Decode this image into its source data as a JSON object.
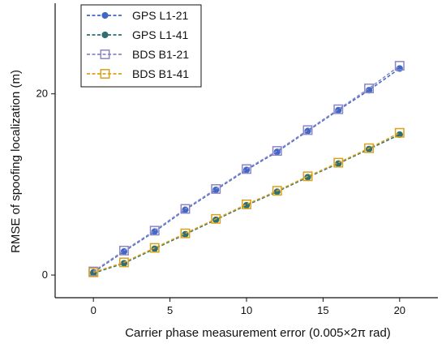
{
  "chart_data": {
    "type": "line",
    "xlabel": "Carrier phase measurement error (0.005×2π rad)",
    "ylabel": "RMSE of spoofing localization (m)",
    "xlim": [
      -2.5,
      22.5
    ],
    "ylim": [
      -2.5,
      30
    ],
    "x_ticks": [
      0,
      5,
      10,
      15,
      20
    ],
    "y_ticks": [
      0,
      20
    ],
    "x": [
      0,
      2,
      4,
      6,
      8,
      10,
      12,
      14,
      16,
      18,
      20
    ],
    "legend_position": "top-left",
    "grid": false,
    "series": [
      {
        "name": "GPS L1-21",
        "color": "#3f68c6",
        "marker": "circle",
        "values": [
          0.3,
          2.6,
          4.8,
          7.2,
          9.4,
          11.6,
          13.6,
          15.9,
          18.2,
          20.4,
          22.8
        ]
      },
      {
        "name": "GPS L1-41",
        "color": "#2f6f70",
        "marker": "circle",
        "values": [
          0.2,
          1.3,
          2.9,
          4.5,
          6.1,
          7.7,
          9.2,
          10.8,
          12.3,
          13.9,
          15.5
        ]
      },
      {
        "name": "BDS B1-21",
        "color": "#8a86c9",
        "marker": "square-open",
        "values": [
          0.4,
          2.7,
          4.9,
          7.3,
          9.5,
          11.7,
          13.7,
          16.0,
          18.3,
          20.6,
          23.1
        ]
      },
      {
        "name": "BDS B1-41",
        "color": "#d9a21a",
        "marker": "square-open",
        "values": [
          0.3,
          1.4,
          3.0,
          4.6,
          6.2,
          7.8,
          9.3,
          10.9,
          12.4,
          14.0,
          15.7
        ]
      }
    ]
  }
}
